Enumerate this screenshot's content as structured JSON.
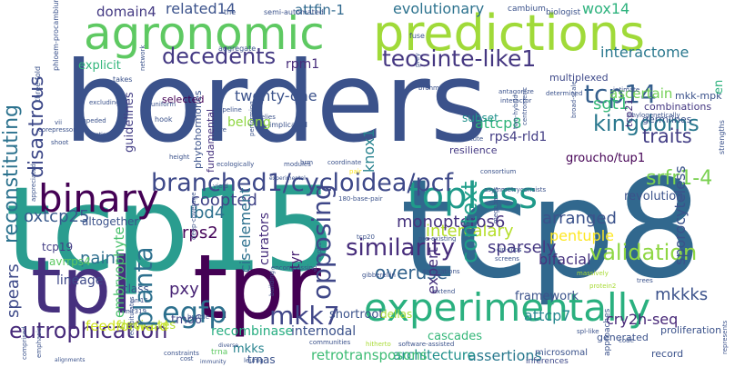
{
  "words": [
    {
      "text": "borders",
      "color": "#3b528b"
    },
    {
      "text": "tcp15",
      "color": "#2a9d8f"
    },
    {
      "text": "tcp8",
      "color": "#31688e"
    },
    {
      "text": "agronomic",
      "color": "#5ec962"
    },
    {
      "text": "predictions",
      "color": "#a0da39"
    },
    {
      "text": "tpr",
      "color": "#440154"
    },
    {
      "text": "tpl",
      "color": "#46307e"
    },
    {
      "text": "binary",
      "color": "#440154"
    },
    {
      "text": "experimentally",
      "color": "#2ab07f"
    },
    {
      "text": "topless",
      "color": "#1f9a8a"
    },
    {
      "text": "branched1/cycloidea/pcf",
      "color": "#3e4989"
    },
    {
      "text": "decedents",
      "color": "#443983"
    },
    {
      "text": "teosinte-like1",
      "color": "#453781"
    },
    {
      "text": "similarity",
      "color": "#472d7b"
    },
    {
      "text": "validation",
      "color": "#8fd744"
    },
    {
      "text": "tcp14",
      "color": "#355f8d"
    },
    {
      "text": "kingdoms",
      "color": "#2a788e"
    },
    {
      "text": "traits",
      "color": "#433e85"
    },
    {
      "text": "sgt1",
      "color": "#35b779"
    },
    {
      "text": "srfr1-4",
      "color": "#7ad151"
    },
    {
      "text": "disastrous",
      "color": "#3e4989"
    },
    {
      "text": "reconstituting",
      "color": "#2c728e"
    },
    {
      "text": "opposing",
      "color": "#3f4788"
    },
    {
      "text": "context",
      "color": "#1f9e89"
    },
    {
      "text": "planta",
      "color": "#2d708e"
    },
    {
      "text": "egfp",
      "color": "#404688"
    },
    {
      "text": "mkk7",
      "color": "#472a7a"
    },
    {
      "text": "eutrophication",
      "color": "#33638d"
    },
    {
      "text": "overuse",
      "color": "#414487"
    },
    {
      "text": "intercalary",
      "color": "#b5de2b"
    },
    {
      "text": "coopted",
      "color": "#46337e"
    },
    {
      "text": "monopteros6",
      "color": "#3b528b"
    },
    {
      "text": "arranged",
      "color": "#fde725"
    },
    {
      "text": "pentuple",
      "color": "#38598c"
    },
    {
      "text": "oxtcp25",
      "color": "#2d708e"
    },
    {
      "text": "lbd4",
      "color": "#482475"
    },
    {
      "text": "pxy",
      "color": "#450559"
    },
    {
      "text": "rps2",
      "color": "#453882"
    },
    {
      "text": "sparsely",
      "color": "#5ec962"
    },
    {
      "text": "expert",
      "color": "#46327e"
    },
    {
      "text": "bifacial",
      "color": "#3b528b"
    },
    {
      "text": "mkkks",
      "color": "#24878e"
    },
    {
      "text": "attcp7",
      "color": "#482878"
    },
    {
      "text": "cry2h-seq",
      "color": "#3e4a89"
    },
    {
      "text": "spears",
      "color": "#2e6f8e"
    },
    {
      "text": "paint",
      "color": "#cde11d"
    },
    {
      "text": "feedforward",
      "color": "#27ad81"
    },
    {
      "text": "recombinase",
      "color": "#29798e"
    },
    {
      "text": "assertions",
      "color": "#21918c"
    },
    {
      "text": "architecture",
      "color": "#3dbc74"
    },
    {
      "text": "retrotransposons",
      "color": "#3b528b"
    },
    {
      "text": "related14",
      "color": "#2c728e"
    },
    {
      "text": "evolutionary",
      "color": "#2db27d"
    },
    {
      "text": "wox14",
      "color": "#443a83"
    },
    {
      "text": "domain4",
      "color": "#30698e"
    },
    {
      "text": "attfin-1",
      "color": "#2a788e"
    },
    {
      "text": "interactome",
      "color": "#31b57b"
    },
    {
      "text": "explicit",
      "color": "#472c7a"
    },
    {
      "text": "rpm1",
      "color": "#3b528b"
    },
    {
      "text": "twenty-one",
      "color": "#26828e"
    },
    {
      "text": "knox1",
      "color": "#73d056"
    },
    {
      "text": "ascertain",
      "color": "#31b57b"
    },
    {
      "text": "attcp8",
      "color": "#433d84"
    },
    {
      "text": "rps4-rld1",
      "color": "#440154"
    },
    {
      "text": "groucho/tup1",
      "color": "#3b528b"
    },
    {
      "text": "revolution",
      "color": "#2fb47c"
    },
    {
      "text": "lineage",
      "color": "#3e4989"
    },
    {
      "text": "embryophyte",
      "color": "#4ac16d"
    },
    {
      "text": "cis-element",
      "color": "#2d708e"
    },
    {
      "text": "shortroot",
      "color": "#3b528b"
    },
    {
      "text": "tyr",
      "color": "#482173"
    },
    {
      "text": "internodal",
      "color": "#3b528b"
    },
    {
      "text": "tmo6",
      "color": "#3f4788"
    },
    {
      "text": "mkks",
      "color": "#26828e"
    },
    {
      "text": "trnas",
      "color": "#3b528b"
    },
    {
      "text": "dellas",
      "color": "#a8db34"
    },
    {
      "text": "cascades",
      "color": "#35b779"
    },
    {
      "text": "sporocyteless",
      "color": "#3b528b"
    },
    {
      "text": "framework",
      "color": "#3b528b"
    },
    {
      "text": "belong",
      "color": "#90d743"
    },
    {
      "text": "dedicates",
      "color": "#b5de2b"
    },
    {
      "text": "curators",
      "color": "#472f7d"
    },
    {
      "text": "phytohormones",
      "color": "#3b528b"
    },
    {
      "text": "fundamental",
      "color": "#46327e"
    },
    {
      "text": "guidelines",
      "color": "#433e85"
    },
    {
      "text": "altogether",
      "color": "#3dbc74"
    },
    {
      "text": "avrrps4",
      "color": "#3b528b"
    },
    {
      "text": "tcp19",
      "color": "#5ec962"
    },
    {
      "text": "class",
      "color": "#433e85"
    },
    {
      "text": "subset",
      "color": "#3b528b"
    },
    {
      "text": "en",
      "color": "#21918c"
    },
    {
      "text": "tcp21",
      "color": "#2db27d"
    },
    {
      "text": "mkk-mpk",
      "color": "#46327e"
    },
    {
      "text": "germlines",
      "color": "#3b528b"
    },
    {
      "text": "combinations",
      "color": "#3b528b"
    },
    {
      "text": "multiplexed",
      "color": "#453882"
    },
    {
      "text": "resilience",
      "color": "#3e4989"
    },
    {
      "text": "proliferation",
      "color": "#443983"
    },
    {
      "text": "generated",
      "color": "#3b528b"
    },
    {
      "text": "record",
      "color": "#3b528b"
    },
    {
      "text": "microsomal",
      "color": "#3b528b"
    },
    {
      "text": "inferences",
      "color": "#3b528b"
    },
    {
      "text": "approaches",
      "color": "#3e4989"
    },
    {
      "text": "trna",
      "color": "#3b528b"
    },
    {
      "text": "the",
      "color": "#5ec962"
    },
    {
      "text": "semi-automated",
      "color": "#3b528b"
    },
    {
      "text": "cambium",
      "color": "#3b528b"
    },
    {
      "text": "biologist",
      "color": "#3b528b"
    },
    {
      "text": "fuse",
      "color": "#3b528b"
    },
    {
      "text": "takes",
      "color": "#3b528b"
    },
    {
      "text": "aggregate",
      "color": "#3b528b"
    },
    {
      "text": "three-fold",
      "color": "#3b528b"
    },
    {
      "text": "phloem-procambium",
      "color": "#3b528b"
    },
    {
      "text": "antagonize",
      "color": "#3b528b"
    },
    {
      "text": "interactor",
      "color": "#3b528b"
    },
    {
      "text": "intimate",
      "color": "#3b528b"
    },
    {
      "text": "strengths",
      "color": "#3b528b"
    },
    {
      "text": "phylogenetically",
      "color": "#3b528b"
    },
    {
      "text": "two-hybrid",
      "color": "#3b528b"
    },
    {
      "text": "centromeric",
      "color": "#3b528b"
    },
    {
      "text": "determined",
      "color": "#3b528b"
    },
    {
      "text": "constitute",
      "color": "#3b528b"
    },
    {
      "text": "excluding",
      "color": "#3b528b"
    },
    {
      "text": "impeded",
      "color": "#3b528b"
    },
    {
      "text": "uniform",
      "color": "#3b528b"
    },
    {
      "text": "hook",
      "color": "#3b528b"
    },
    {
      "text": "pipeline",
      "color": "#3b528b"
    },
    {
      "text": "implicated",
      "color": "#3b528b"
    },
    {
      "text": "relies",
      "color": "#3b528b"
    },
    {
      "text": "selected",
      "color": "#3b528b"
    },
    {
      "text": "cre",
      "color": "#440154"
    },
    {
      "text": "contigs",
      "color": "#3b528b"
    },
    {
      "text": "shoot",
      "color": "#3b528b"
    },
    {
      "text": "vii",
      "color": "#3b528b"
    },
    {
      "text": "appreciated",
      "color": "#3b528b"
    },
    {
      "text": "corepressor",
      "color": "#3b528b"
    },
    {
      "text": "deep-coverage",
      "color": "#3b528b"
    },
    {
      "text": "height",
      "color": "#3b528b"
    },
    {
      "text": "ecologically",
      "color": "#3b528b"
    },
    {
      "text": "modules",
      "color": "#3b528b"
    },
    {
      "text": "brm",
      "color": "#3b528b"
    },
    {
      "text": "coordinate",
      "color": "#3b528b"
    },
    {
      "text": "pair",
      "color": "#3b528b"
    },
    {
      "text": "consortium",
      "color": "#fde725"
    },
    {
      "text": "asymmetry",
      "color": "#3b528b"
    },
    {
      "text": "consists",
      "color": "#3b528b"
    },
    {
      "text": "megabases",
      "color": "#3b528b"
    },
    {
      "text": "180-base-pair",
      "color": "#3b528b"
    },
    {
      "text": "mpks",
      "color": "#3b528b"
    },
    {
      "text": "encompassing",
      "color": "#3b528b"
    },
    {
      "text": "annotations",
      "color": "#3b528b"
    },
    {
      "text": "cin-tcps",
      "color": "#3b528b"
    },
    {
      "text": "screens",
      "color": "#3b528b"
    },
    {
      "text": "massively",
      "color": "#3b528b"
    },
    {
      "text": "protein2",
      "color": "#a8db34"
    },
    {
      "text": "trees",
      "color": "#a8db34"
    },
    {
      "text": "extend",
      "color": "#3b528b"
    },
    {
      "text": "pre-existing",
      "color": "#3b528b"
    },
    {
      "text": "tcp20",
      "color": "#3b528b"
    },
    {
      "text": "arr16",
      "color": "#3b528b"
    },
    {
      "text": "mir319",
      "color": "#3b528b"
    },
    {
      "text": "bundle",
      "color": "#3b528b"
    },
    {
      "text": "building",
      "color": "#3b528b"
    },
    {
      "text": "constraints",
      "color": "#3b528b"
    },
    {
      "text": "recapitulates",
      "color": "#3b528b"
    },
    {
      "text": "cost",
      "color": "#3b528b"
    },
    {
      "text": "emphasis",
      "color": "#3b528b"
    },
    {
      "text": "comprised",
      "color": "#3b528b"
    },
    {
      "text": "alignments",
      "color": "#3b528b"
    },
    {
      "text": "diverse",
      "color": "#3b528b"
    },
    {
      "text": "immunity",
      "color": "#3b528b"
    },
    {
      "text": "communities",
      "color": "#3b528b"
    },
    {
      "text": "hitherto",
      "color": "#3b528b"
    },
    {
      "text": "software-assisted",
      "color": "#3b528b"
    },
    {
      "text": "spl-like",
      "color": "#3b528b"
    },
    {
      "text": "code",
      "color": "#3b528b"
    },
    {
      "text": "represents",
      "color": "#3b528b"
    },
    {
      "text": "prey",
      "color": "#a8db34"
    },
    {
      "text": "network",
      "color": "#3b528b"
    },
    {
      "text": "gibberellin",
      "color": "#3b528b"
    },
    {
      "text": "brahma",
      "color": "#3b528b"
    },
    {
      "text": "broad-scale",
      "color": "#3b528b"
    },
    {
      "text": "performing",
      "color": "#3b528b"
    },
    {
      "text": "yield",
      "color": "#3b528b"
    },
    {
      "text": "experimental",
      "color": "#3b528b"
    },
    {
      "text": "leunig",
      "color": "#3b528b"
    },
    {
      "text": "transposons",
      "color": "#3b528b"
    },
    {
      "text": "rps6",
      "color": "#3b528b"
    },
    {
      "text": "search",
      "color": "#3b528b"
    },
    {
      "text": "comparison",
      "color": "#3b528b"
    },
    {
      "text": "apetala2,3",
      "color": "#3b528b"
    },
    {
      "text": "semi-quantitative",
      "color": "#3b528b"
    },
    {
      "text": "retrieving",
      "color": "#3b528b"
    }
  ]
}
